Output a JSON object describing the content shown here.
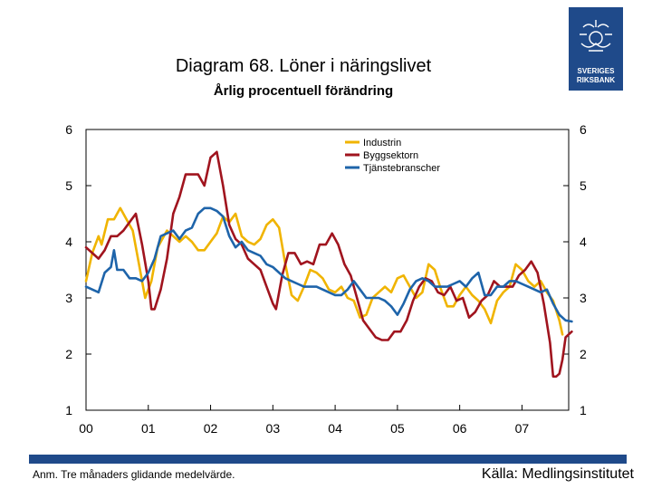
{
  "header": {
    "title": "Diagram 68. Löner i näringslivet",
    "subtitle": "Årlig procentuell förändring"
  },
  "logo": {
    "line1": "SVERIGES",
    "line2": "RIKSBANK",
    "icon": "riksbank-crest-icon"
  },
  "footer": {
    "note": "Anm. Tre månaders glidande medelvärde.",
    "source": "Källa: Medlingsinstitutet"
  },
  "colors": {
    "industrin": "#f0b400",
    "byggsektorn": "#a0141e",
    "tjanste": "#1e64aa",
    "brand": "#1f4a8a"
  },
  "chart_data": {
    "type": "line",
    "title": "Diagram 68. Löner i näringslivet",
    "subtitle": "Årlig procentuell förändring",
    "xlabel": "",
    "ylabel": "",
    "x_range": [
      0,
      7.75
    ],
    "ylim": [
      1,
      6
    ],
    "y_ticks": [
      1,
      2,
      3,
      4,
      5,
      6
    ],
    "y_tick_labels": [
      "1",
      "2",
      "3",
      "4",
      "5",
      "6"
    ],
    "x_tick_labels": [
      "00",
      "01",
      "02",
      "03",
      "04",
      "05",
      "06",
      "07"
    ],
    "grid": false,
    "legend": "top-right",
    "series": [
      {
        "name": "Industrin",
        "color": "#f0b400",
        "points": [
          [
            0,
            3.3
          ],
          [
            0.1,
            3.8
          ],
          [
            0.2,
            4.1
          ],
          [
            0.25,
            3.95
          ],
          [
            0.35,
            4.4
          ],
          [
            0.45,
            4.4
          ],
          [
            0.55,
            4.6
          ],
          [
            0.65,
            4.4
          ],
          [
            0.75,
            4.2
          ],
          [
            0.85,
            3.6
          ],
          [
            0.95,
            3.0
          ],
          [
            1.05,
            3.3
          ],
          [
            1.15,
            3.9
          ],
          [
            1.3,
            4.2
          ],
          [
            1.4,
            4.1
          ],
          [
            1.5,
            4.0
          ],
          [
            1.6,
            4.1
          ],
          [
            1.7,
            4.0
          ],
          [
            1.8,
            3.85
          ],
          [
            1.9,
            3.85
          ],
          [
            2.0,
            4.0
          ],
          [
            2.1,
            4.15
          ],
          [
            2.2,
            4.45
          ],
          [
            2.3,
            4.35
          ],
          [
            2.4,
            4.5
          ],
          [
            2.5,
            4.1
          ],
          [
            2.6,
            4.0
          ],
          [
            2.7,
            3.95
          ],
          [
            2.8,
            4.05
          ],
          [
            2.9,
            4.3
          ],
          [
            3.0,
            4.4
          ],
          [
            3.1,
            4.25
          ],
          [
            3.2,
            3.6
          ],
          [
            3.3,
            3.05
          ],
          [
            3.4,
            2.95
          ],
          [
            3.5,
            3.2
          ],
          [
            3.6,
            3.5
          ],
          [
            3.7,
            3.45
          ],
          [
            3.8,
            3.35
          ],
          [
            3.9,
            3.15
          ],
          [
            4.0,
            3.1
          ],
          [
            4.1,
            3.2
          ],
          [
            4.2,
            3.0
          ],
          [
            4.3,
            2.95
          ],
          [
            4.4,
            2.65
          ],
          [
            4.5,
            2.7
          ],
          [
            4.6,
            3.0
          ],
          [
            4.7,
            3.1
          ],
          [
            4.8,
            3.2
          ],
          [
            4.9,
            3.1
          ],
          [
            5.0,
            3.35
          ],
          [
            5.1,
            3.4
          ],
          [
            5.2,
            3.2
          ],
          [
            5.3,
            3.0
          ],
          [
            5.4,
            3.1
          ],
          [
            5.5,
            3.6
          ],
          [
            5.6,
            3.5
          ],
          [
            5.7,
            3.15
          ],
          [
            5.8,
            2.85
          ],
          [
            5.9,
            2.85
          ],
          [
            6.0,
            3.05
          ],
          [
            6.1,
            3.2
          ],
          [
            6.2,
            3.05
          ],
          [
            6.3,
            2.95
          ],
          [
            6.4,
            2.8
          ],
          [
            6.5,
            2.55
          ],
          [
            6.6,
            2.95
          ],
          [
            6.7,
            3.1
          ],
          [
            6.8,
            3.2
          ],
          [
            6.9,
            3.6
          ],
          [
            7.0,
            3.5
          ],
          [
            7.1,
            3.3
          ],
          [
            7.2,
            3.2
          ],
          [
            7.3,
            3.3
          ],
          [
            7.4,
            3.1
          ],
          [
            7.5,
            2.95
          ],
          [
            7.6,
            2.6
          ],
          [
            7.65,
            2.35
          ]
        ]
      },
      {
        "name": "Byggsektorn",
        "color": "#a0141e",
        "points": [
          [
            0,
            3.9
          ],
          [
            0.1,
            3.8
          ],
          [
            0.2,
            3.7
          ],
          [
            0.3,
            3.85
          ],
          [
            0.4,
            4.1
          ],
          [
            0.5,
            4.1
          ],
          [
            0.6,
            4.2
          ],
          [
            0.7,
            4.35
          ],
          [
            0.8,
            4.5
          ],
          [
            0.9,
            3.95
          ],
          [
            1.0,
            3.3
          ],
          [
            1.05,
            2.8
          ],
          [
            1.1,
            2.8
          ],
          [
            1.2,
            3.15
          ],
          [
            1.3,
            3.7
          ],
          [
            1.4,
            4.5
          ],
          [
            1.5,
            4.8
          ],
          [
            1.6,
            5.2
          ],
          [
            1.7,
            5.2
          ],
          [
            1.8,
            5.2
          ],
          [
            1.9,
            5.0
          ],
          [
            2.0,
            5.5
          ],
          [
            2.1,
            5.6
          ],
          [
            2.2,
            5.0
          ],
          [
            2.3,
            4.3
          ],
          [
            2.4,
            4.05
          ],
          [
            2.5,
            3.95
          ],
          [
            2.6,
            3.7
          ],
          [
            2.7,
            3.6
          ],
          [
            2.8,
            3.5
          ],
          [
            2.9,
            3.2
          ],
          [
            3.0,
            2.9
          ],
          [
            3.05,
            2.8
          ],
          [
            3.15,
            3.4
          ],
          [
            3.25,
            3.8
          ],
          [
            3.35,
            3.8
          ],
          [
            3.45,
            3.6
          ],
          [
            3.55,
            3.65
          ],
          [
            3.65,
            3.6
          ],
          [
            3.75,
            3.95
          ],
          [
            3.85,
            3.95
          ],
          [
            3.95,
            4.15
          ],
          [
            4.05,
            3.95
          ],
          [
            4.15,
            3.6
          ],
          [
            4.25,
            3.4
          ],
          [
            4.35,
            3.0
          ],
          [
            4.45,
            2.6
          ],
          [
            4.55,
            2.45
          ],
          [
            4.65,
            2.3
          ],
          [
            4.75,
            2.25
          ],
          [
            4.85,
            2.25
          ],
          [
            4.95,
            2.4
          ],
          [
            5.05,
            2.4
          ],
          [
            5.15,
            2.6
          ],
          [
            5.25,
            2.95
          ],
          [
            5.35,
            3.2
          ],
          [
            5.45,
            3.35
          ],
          [
            5.55,
            3.3
          ],
          [
            5.65,
            3.1
          ],
          [
            5.75,
            3.05
          ],
          [
            5.85,
            3.2
          ],
          [
            5.95,
            2.95
          ],
          [
            6.05,
            3.0
          ],
          [
            6.15,
            2.65
          ],
          [
            6.25,
            2.75
          ],
          [
            6.35,
            2.95
          ],
          [
            6.45,
            3.05
          ],
          [
            6.55,
            3.3
          ],
          [
            6.65,
            3.2
          ],
          [
            6.75,
            3.2
          ],
          [
            6.85,
            3.2
          ],
          [
            6.95,
            3.4
          ],
          [
            7.05,
            3.5
          ],
          [
            7.15,
            3.65
          ],
          [
            7.25,
            3.45
          ],
          [
            7.35,
            2.9
          ],
          [
            7.45,
            2.2
          ],
          [
            7.5,
            1.6
          ],
          [
            7.55,
            1.6
          ],
          [
            7.6,
            1.65
          ],
          [
            7.65,
            1.9
          ],
          [
            7.7,
            2.3
          ],
          [
            7.8,
            2.4
          ]
        ]
      },
      {
        "name": "Tjänstebranscher",
        "color": "#1e64aa",
        "points": [
          [
            0,
            3.2
          ],
          [
            0.1,
            3.15
          ],
          [
            0.2,
            3.1
          ],
          [
            0.3,
            3.45
          ],
          [
            0.4,
            3.55
          ],
          [
            0.45,
            3.85
          ],
          [
            0.5,
            3.5
          ],
          [
            0.6,
            3.5
          ],
          [
            0.7,
            3.35
          ],
          [
            0.8,
            3.35
          ],
          [
            0.9,
            3.3
          ],
          [
            1.0,
            3.45
          ],
          [
            1.1,
            3.7
          ],
          [
            1.2,
            4.1
          ],
          [
            1.3,
            4.15
          ],
          [
            1.4,
            4.2
          ],
          [
            1.5,
            4.05
          ],
          [
            1.6,
            4.2
          ],
          [
            1.7,
            4.25
          ],
          [
            1.8,
            4.5
          ],
          [
            1.9,
            4.6
          ],
          [
            2.0,
            4.6
          ],
          [
            2.1,
            4.55
          ],
          [
            2.2,
            4.45
          ],
          [
            2.3,
            4.1
          ],
          [
            2.4,
            3.9
          ],
          [
            2.5,
            4.0
          ],
          [
            2.6,
            3.85
          ],
          [
            2.7,
            3.8
          ],
          [
            2.8,
            3.75
          ],
          [
            2.9,
            3.6
          ],
          [
            3.0,
            3.55
          ],
          [
            3.1,
            3.45
          ],
          [
            3.2,
            3.35
          ],
          [
            3.3,
            3.3
          ],
          [
            3.4,
            3.25
          ],
          [
            3.5,
            3.2
          ],
          [
            3.6,
            3.2
          ],
          [
            3.7,
            3.2
          ],
          [
            3.8,
            3.15
          ],
          [
            3.9,
            3.1
          ],
          [
            4.0,
            3.05
          ],
          [
            4.1,
            3.05
          ],
          [
            4.2,
            3.15
          ],
          [
            4.3,
            3.3
          ],
          [
            4.4,
            3.15
          ],
          [
            4.5,
            3.0
          ],
          [
            4.6,
            3.0
          ],
          [
            4.7,
            3.0
          ],
          [
            4.8,
            2.95
          ],
          [
            4.9,
            2.85
          ],
          [
            5.0,
            2.7
          ],
          [
            5.1,
            2.9
          ],
          [
            5.2,
            3.15
          ],
          [
            5.3,
            3.3
          ],
          [
            5.4,
            3.35
          ],
          [
            5.5,
            3.3
          ],
          [
            5.6,
            3.2
          ],
          [
            5.7,
            3.2
          ],
          [
            5.8,
            3.2
          ],
          [
            5.9,
            3.25
          ],
          [
            6.0,
            3.3
          ],
          [
            6.1,
            3.2
          ],
          [
            6.2,
            3.35
          ],
          [
            6.3,
            3.45
          ],
          [
            6.4,
            3.05
          ],
          [
            6.5,
            3.05
          ],
          [
            6.6,
            3.2
          ],
          [
            6.7,
            3.2
          ],
          [
            6.8,
            3.3
          ],
          [
            6.9,
            3.3
          ],
          [
            7.0,
            3.25
          ],
          [
            7.1,
            3.2
          ],
          [
            7.2,
            3.15
          ],
          [
            7.3,
            3.1
          ],
          [
            7.4,
            3.15
          ],
          [
            7.5,
            2.9
          ],
          [
            7.6,
            2.7
          ],
          [
            7.7,
            2.6
          ],
          [
            7.8,
            2.58
          ]
        ]
      }
    ]
  }
}
